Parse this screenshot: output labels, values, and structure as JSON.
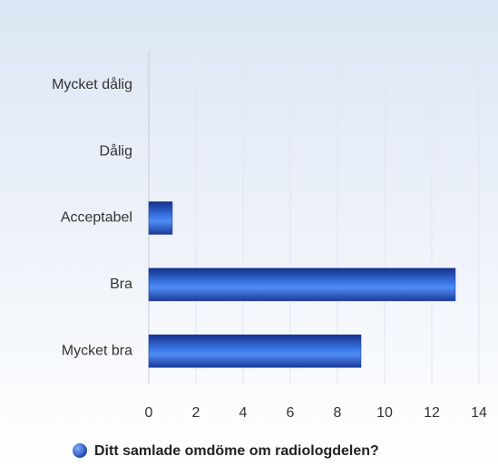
{
  "chart_data": {
    "type": "bar",
    "orientation": "horizontal",
    "categories": [
      "Mycket dålig",
      "Dålig",
      "Acceptabel",
      "Bra",
      "Mycket bra"
    ],
    "series": [
      {
        "name": "Ditt samlade omdöme om radiologdelen?",
        "color": "#2a5bd7",
        "values": [
          0,
          0,
          1,
          13,
          9
        ]
      }
    ],
    "xlim": [
      0,
      14
    ],
    "xticks": [
      0,
      2,
      4,
      6,
      8,
      10,
      12,
      14
    ],
    "grid": true,
    "legend": "bottom"
  }
}
